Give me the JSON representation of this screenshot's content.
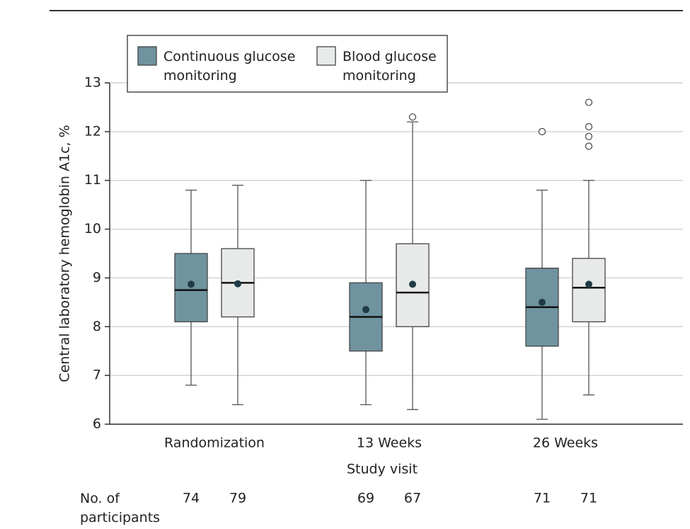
{
  "chart_data": {
    "type": "box",
    "y_label": "Central laboratory hemoglobin A1c, %",
    "x_label": "Study visit",
    "categories": [
      "Randomization",
      "13 Weeks",
      "26 Weeks"
    ],
    "ylim": [
      6,
      13
    ],
    "yticks": [
      6,
      7,
      8,
      9,
      10,
      11,
      12,
      13
    ],
    "grid": true,
    "legend_position": "top-left",
    "count_label": "No. of participants",
    "series": [
      {
        "name": "Continuous glucose monitoring",
        "color": "#6f939f",
        "whisker_low": [
          6.8,
          6.4,
          6.1
        ],
        "q1": [
          8.1,
          7.5,
          7.6
        ],
        "median": [
          8.75,
          8.2,
          8.4
        ],
        "q3": [
          9.5,
          8.9,
          9.2
        ],
        "whisker_high": [
          10.8,
          11.0,
          10.8
        ],
        "mean": [
          8.87,
          8.35,
          8.5
        ],
        "outliers": [
          [],
          [],
          [
            12.0
          ]
        ],
        "n": [
          74,
          69,
          71
        ]
      },
      {
        "name": "Blood glucose monitoring",
        "color": "#e8eaea",
        "whisker_low": [
          6.4,
          6.3,
          6.6
        ],
        "q1": [
          8.2,
          8.0,
          8.1
        ],
        "median": [
          8.9,
          8.7,
          8.8
        ],
        "q3": [
          9.6,
          9.7,
          9.4
        ],
        "whisker_high": [
          10.9,
          12.2,
          11.0
        ],
        "mean": [
          8.88,
          8.87,
          8.87
        ],
        "outliers": [
          [],
          [
            12.3
          ],
          [
            12.6,
            12.1,
            11.9,
            11.7
          ]
        ],
        "n": [
          79,
          67,
          71
        ]
      }
    ]
  }
}
